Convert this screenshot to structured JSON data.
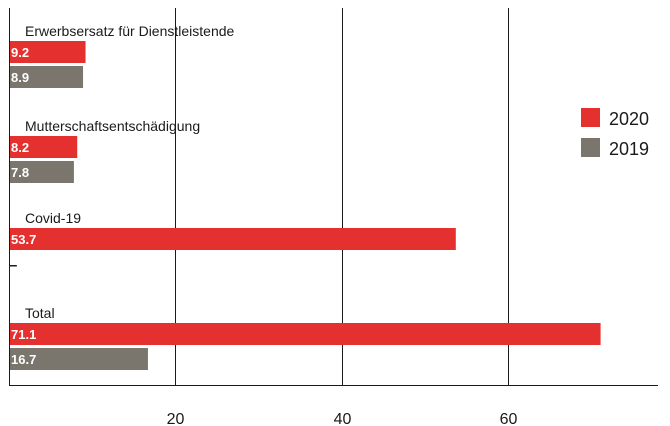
{
  "chart_data": {
    "type": "bar",
    "orientation": "horizontal",
    "categories": [
      "Erwerbsersatz für Dienstleistende",
      "Mutterschaftsentschädigung",
      "Covid-19",
      "Total"
    ],
    "series": [
      {
        "name": "2020",
        "color": "#e4312f",
        "values": [
          9.2,
          8.2,
          53.7,
          71.1
        ],
        "labels": [
          "9.2",
          "8.2",
          "53.7",
          "71.1"
        ]
      },
      {
        "name": "2019",
        "color": "#7a766d",
        "values": [
          8.9,
          7.8,
          null,
          16.7
        ],
        "labels": [
          "8.9",
          "7.8",
          "–",
          "16.7"
        ]
      }
    ],
    "xlim": [
      0,
      78
    ],
    "x_ticks": [
      20,
      40,
      60
    ],
    "x_tick_labels": [
      "20",
      "40",
      "60"
    ],
    "grid": true,
    "legend_position": "right",
    "title": "",
    "xlabel": "",
    "ylabel": ""
  }
}
